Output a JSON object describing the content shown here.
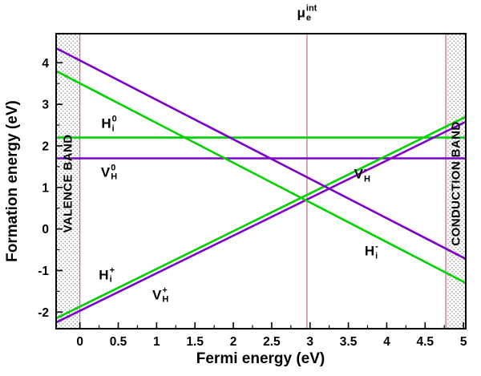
{
  "chart_data": {
    "type": "line",
    "title": "",
    "xlabel": "Fermi energy (eV)",
    "ylabel": "Formation energy (eV)",
    "xlim": [
      -0.31,
      5.03
    ],
    "ylim": [
      -2.4,
      4.7
    ],
    "x_ticks": [
      0,
      0.5,
      1,
      1.5,
      2,
      2.5,
      3,
      3.5,
      4,
      4.5,
      5
    ],
    "x_tick_labels": [
      "0",
      "0.5",
      "1",
      "1.5",
      "2",
      "2.5",
      "3",
      "3.5",
      "4",
      "4.5",
      "5"
    ],
    "y_ticks": [
      -2,
      -1,
      0,
      1,
      2,
      3,
      4
    ],
    "y_tick_labels": [
      "-2",
      "-1",
      "0",
      "1",
      "2",
      "3",
      "4"
    ],
    "grid": false,
    "legend": "inline-labels",
    "colors": {
      "hydrogen_interstitial": "#00d200",
      "hydrogen_vacancy": "#7d00c8",
      "reference_lines": "#c9808f",
      "frame": "#000000"
    },
    "series": [
      {
        "name": "Hi0",
        "label": {
          "base": "H",
          "sub": "i",
          "sup": "0"
        },
        "color_key": "hydrogen_interstitial",
        "points": [
          [
            -0.31,
            2.2
          ],
          [
            5.03,
            2.2
          ]
        ],
        "label_pos": [
          0.38,
          2.52
        ]
      },
      {
        "name": "VH0",
        "label": {
          "base": "V",
          "sub": "H",
          "sup": "0"
        },
        "color_key": "hydrogen_vacancy",
        "points": [
          [
            -0.31,
            1.7
          ],
          [
            5.03,
            1.7
          ]
        ],
        "label_pos": [
          0.38,
          1.35
        ]
      },
      {
        "name": "Hi+",
        "label": {
          "base": "H",
          "sub": "i",
          "sup": "+"
        },
        "color_key": "hydrogen_interstitial",
        "points": [
          [
            -0.31,
            -2.15
          ],
          [
            5.03,
            2.7
          ]
        ],
        "label_pos": [
          0.35,
          -1.12
        ]
      },
      {
        "name": "VH+",
        "label": {
          "base": "V",
          "sub": "H",
          "sup": "+"
        },
        "color_key": "hydrogen_vacancy",
        "points": [
          [
            -0.31,
            -2.25
          ],
          [
            5.03,
            2.58
          ]
        ],
        "label_pos": [
          1.05,
          -1.6
        ]
      },
      {
        "name": "Hi-",
        "label": {
          "base": "H",
          "sub": "i",
          "sup": "-"
        },
        "color_key": "hydrogen_interstitial",
        "points": [
          [
            -0.31,
            3.8
          ],
          [
            5.03,
            -1.3
          ]
        ],
        "label_pos": [
          3.8,
          -0.55
        ]
      },
      {
        "name": "VH-",
        "label": {
          "base": "V",
          "sub": "H",
          "sup": "-"
        },
        "color_key": "hydrogen_vacancy",
        "points": [
          [
            -0.31,
            4.35
          ],
          [
            5.03,
            -0.72
          ]
        ],
        "label_pos": [
          3.68,
          1.3
        ]
      }
    ],
    "bands": [
      {
        "name": "valence-band",
        "label": "VALENCE BAND",
        "x_range": [
          -0.31,
          0
        ],
        "label_pos": [
          -0.155,
          1.1
        ]
      },
      {
        "name": "conduction-band",
        "label": "CONDUCTION BAND",
        "x_range": [
          4.77,
          5.03
        ],
        "label_pos": [
          4.9,
          1.1
        ]
      }
    ],
    "vlines": [
      {
        "name": "valence-band-edge",
        "x": 0
      },
      {
        "name": "intrinsic-electron-chemical-potential",
        "x": 2.96
      },
      {
        "name": "conduction-band-edge",
        "x": 4.77
      }
    ],
    "mu_label": {
      "base": "μ",
      "sub": "e",
      "sup": "int",
      "pos": [
        2.96,
        5.18
      ]
    }
  }
}
